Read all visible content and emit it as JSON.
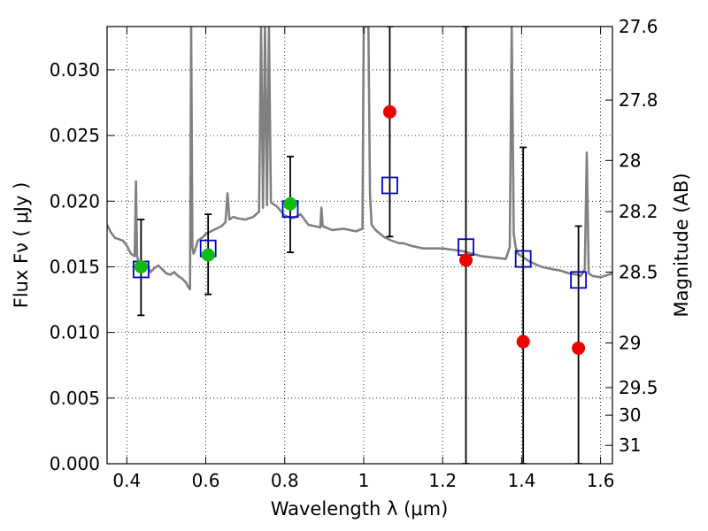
{
  "chart_data": {
    "type": "scatter",
    "xlabel": "Wavelength  λ (μm)",
    "ylabel": "Flux  Fν  ( μJy )",
    "y2label": "Magnitude (AB)",
    "xlim": [
      0.35,
      1.63
    ],
    "ylim": [
      0.0,
      0.0333
    ],
    "grid": true,
    "x_ticks": [
      0.4,
      0.6,
      0.8,
      1.0,
      1.2,
      1.4,
      1.6
    ],
    "x_tick_labels": [
      "0.4",
      "0.6",
      "0.8",
      "1",
      "1.2",
      "1.4",
      "1.6"
    ],
    "y_ticks": [
      0.0,
      0.005,
      0.01,
      0.015,
      0.02,
      0.025,
      0.03
    ],
    "y_tick_labels": [
      "0.000",
      "0.005",
      "0.010",
      "0.015",
      "0.020",
      "0.025",
      "0.030"
    ],
    "y2_ticks": [
      {
        "label": "27.6",
        "flux": 0.0333
      },
      {
        "label": "27.8",
        "flux": 0.0277
      },
      {
        "label": "28",
        "flux": 0.0231
      },
      {
        "label": "28.2",
        "flux": 0.0192
      },
      {
        "label": "28.5",
        "flux": 0.0146
      },
      {
        "label": "29",
        "flux": 0.0092
      },
      {
        "label": "29.5",
        "flux": 0.0058
      },
      {
        "label": "30",
        "flux": 0.0037
      },
      {
        "label": "31",
        "flux": 0.0014
      }
    ],
    "colors": {
      "spectrum": "#808080",
      "model_points": "#0000cc",
      "detections": "#11bb11",
      "upper_limits": "#ee0000",
      "errorbars": "#000000"
    },
    "series": [
      {
        "kind": "spectrum",
        "x": [
          0.35,
          0.36,
          0.37,
          0.38,
          0.39,
          0.4,
          0.41,
          0.42,
          0.423,
          0.426,
          0.43,
          0.44,
          0.45,
          0.46,
          0.47,
          0.48,
          0.49,
          0.5,
          0.51,
          0.52,
          0.53,
          0.54,
          0.55,
          0.555,
          0.56,
          0.563,
          0.566,
          0.569,
          0.572,
          0.58,
          0.59,
          0.6,
          0.62,
          0.64,
          0.65,
          0.655,
          0.66,
          0.67,
          0.68,
          0.7,
          0.72,
          0.735,
          0.74,
          0.745,
          0.75,
          0.755,
          0.76,
          0.765,
          0.77,
          0.78,
          0.8,
          0.82,
          0.84,
          0.86,
          0.89,
          0.893,
          0.896,
          0.92,
          0.95,
          0.98,
          0.997,
          1.0,
          1.004,
          1.008,
          1.012,
          1.016,
          1.02,
          1.03,
          1.05,
          1.07,
          1.09,
          1.1,
          1.12,
          1.15,
          1.2,
          1.25,
          1.3,
          1.33,
          1.36,
          1.37,
          1.375,
          1.38,
          1.385,
          1.39,
          1.4,
          1.42,
          1.45,
          1.48,
          1.5,
          1.52,
          1.54,
          1.55,
          1.56,
          1.565,
          1.57,
          1.58,
          1.6,
          1.63
        ],
        "y": [
          0.0182,
          0.0176,
          0.0172,
          0.0171,
          0.017,
          0.0166,
          0.016,
          0.0158,
          0.0215,
          0.0158,
          0.0154,
          0.015,
          0.0152,
          0.0146,
          0.0149,
          0.0151,
          0.0148,
          0.0145,
          0.0144,
          0.0146,
          0.0143,
          0.0141,
          0.0138,
          0.0135,
          0.0133,
          0.0333,
          0.0165,
          0.016,
          0.0162,
          0.017,
          0.0172,
          0.0175,
          0.0178,
          0.0181,
          0.0184,
          0.0206,
          0.0186,
          0.0188,
          0.0187,
          0.0186,
          0.0188,
          0.0192,
          0.0333,
          0.0195,
          0.0333,
          0.0197,
          0.0333,
          0.0199,
          0.0198,
          0.0196,
          0.0189,
          0.0187,
          0.019,
          0.0182,
          0.018,
          0.0195,
          0.0181,
          0.0178,
          0.0179,
          0.0177,
          0.0179,
          0.0333,
          0.0333,
          0.0333,
          0.0333,
          0.0205,
          0.0182,
          0.0178,
          0.0173,
          0.017,
          0.0168,
          0.0168,
          0.0166,
          0.0164,
          0.0164,
          0.0162,
          0.0158,
          0.0157,
          0.0156,
          0.0165,
          0.0333,
          0.0175,
          0.0165,
          0.016,
          0.0158,
          0.0154,
          0.015,
          0.0148,
          0.0147,
          0.0145,
          0.0144,
          0.0143,
          0.0148,
          0.0237,
          0.0145,
          0.0143,
          0.0142,
          0.0145
        ]
      },
      {
        "kind": "errorbars",
        "points": [
          {
            "x": 0.436,
            "low": 0.0113,
            "high": 0.0186
          },
          {
            "x": 0.606,
            "low": 0.0129,
            "high": 0.019
          },
          {
            "x": 0.814,
            "low": 0.0161,
            "high": 0.0234
          },
          {
            "x": 1.066,
            "low": 0.0173,
            "high": 0.0333
          },
          {
            "x": 1.259,
            "low": 0.0,
            "high": 0.0333
          },
          {
            "x": 1.404,
            "low": 0.0,
            "high": 0.0241
          },
          {
            "x": 1.544,
            "low": 0.0,
            "high": 0.0181
          }
        ]
      },
      {
        "kind": "model",
        "marker": "open-square",
        "points": [
          {
            "x": 0.436,
            "y": 0.0148
          },
          {
            "x": 0.606,
            "y": 0.0164
          },
          {
            "x": 0.814,
            "y": 0.0194
          },
          {
            "x": 1.066,
            "y": 0.0212
          },
          {
            "x": 1.259,
            "y": 0.0165
          },
          {
            "x": 1.404,
            "y": 0.0156
          },
          {
            "x": 1.544,
            "y": 0.014
          }
        ]
      },
      {
        "kind": "detections",
        "marker": "filled-circle",
        "points": [
          {
            "x": 0.436,
            "y": 0.015
          },
          {
            "x": 0.606,
            "y": 0.0159
          },
          {
            "x": 0.814,
            "y": 0.0198
          }
        ]
      },
      {
        "kind": "upper_limits",
        "marker": "filled-circle",
        "points": [
          {
            "x": 1.066,
            "y": 0.0268
          },
          {
            "x": 1.259,
            "y": 0.0155
          },
          {
            "x": 1.404,
            "y": 0.0093
          },
          {
            "x": 1.544,
            "y": 0.0088
          }
        ]
      }
    ]
  }
}
